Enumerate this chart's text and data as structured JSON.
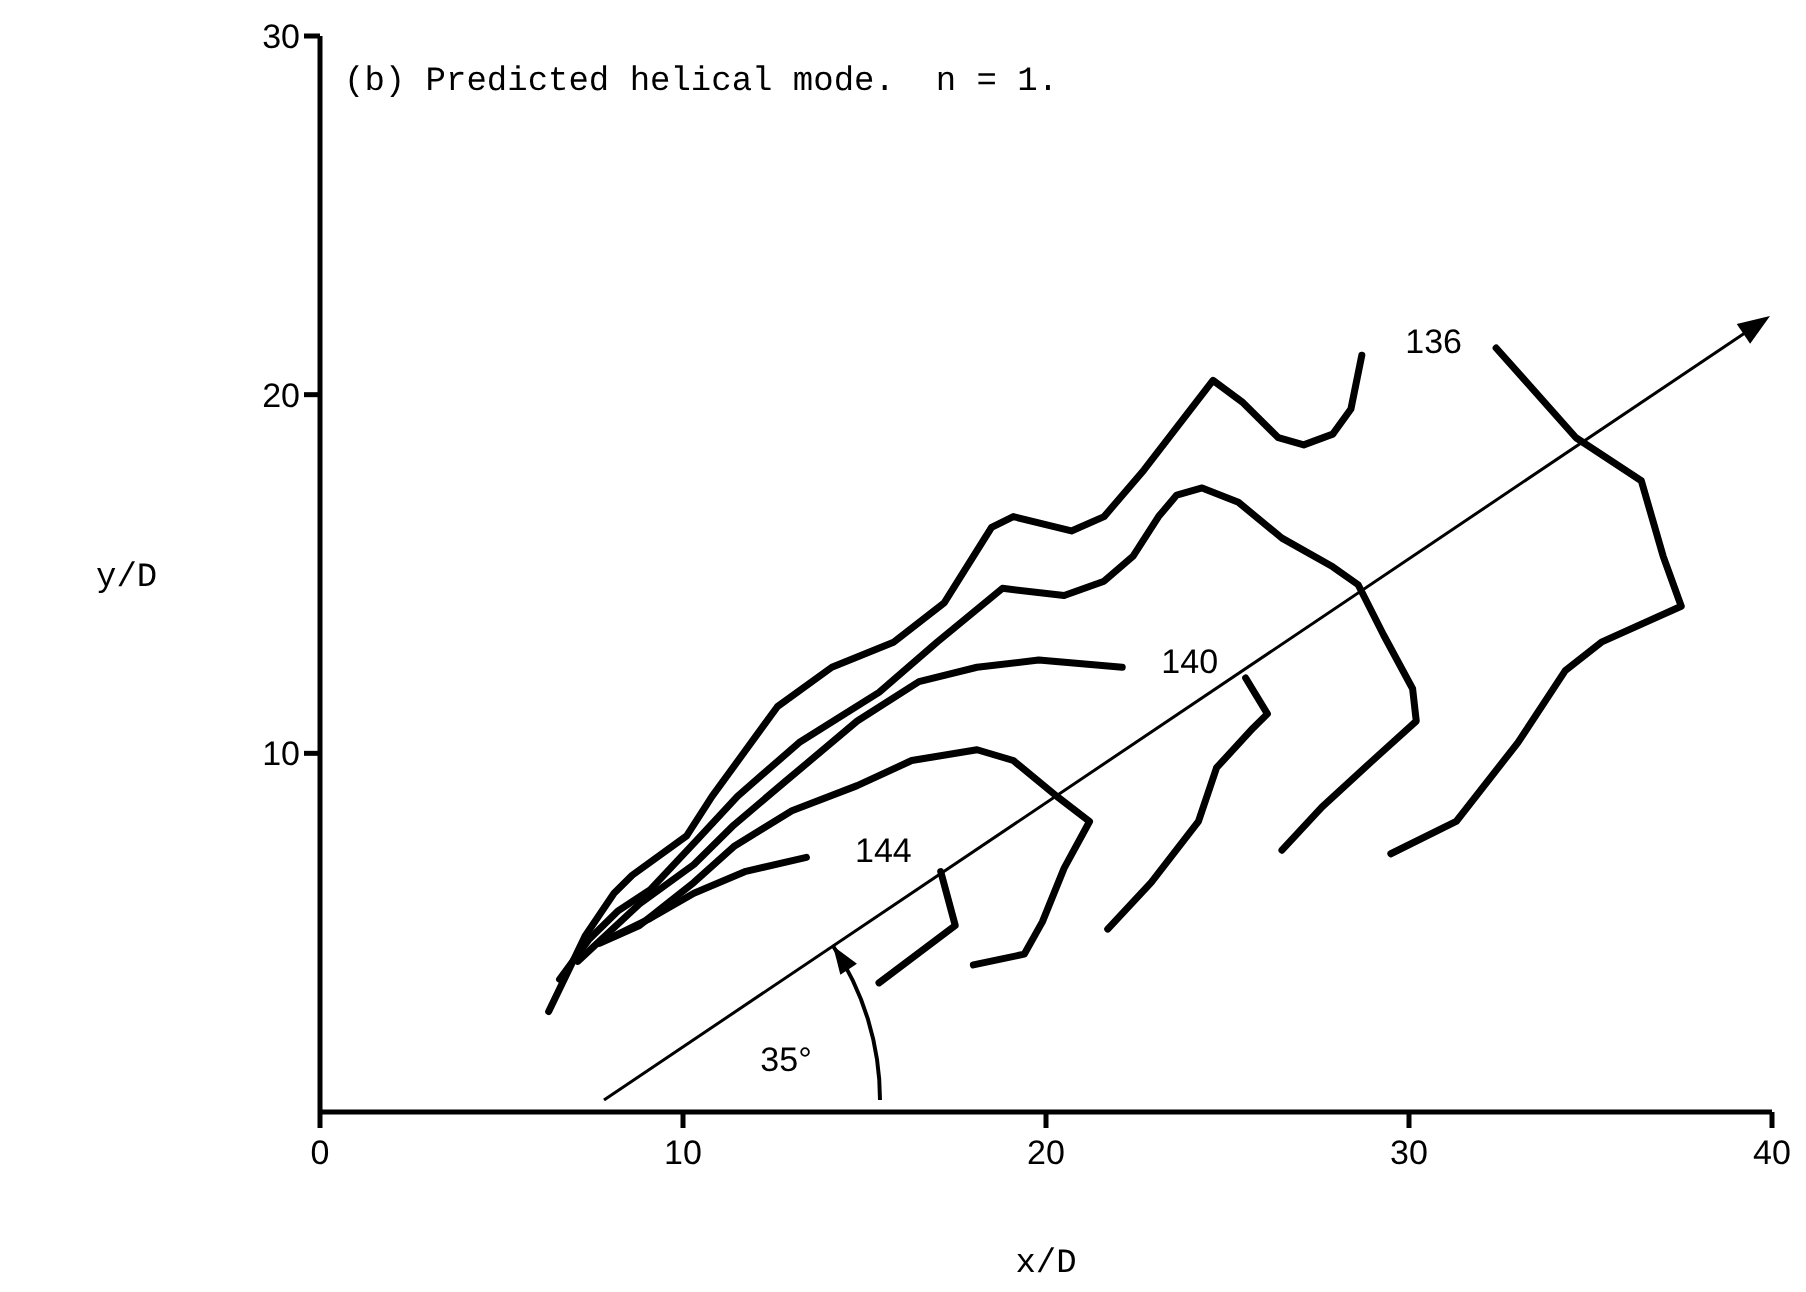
{
  "chart_data": {
    "type": "line",
    "title": "(b) Predicted helical mode.  n = 1.",
    "xlabel": "x/D",
    "ylabel": "y/D",
    "xlim": [
      0,
      40
    ],
    "ylim": [
      0,
      30
    ],
    "xticks": [
      0,
      10,
      20,
      30,
      40
    ],
    "yticks": [
      10,
      20,
      30
    ],
    "marker": "none",
    "line_style": "solid",
    "series": [
      {
        "color": "#000000",
        "x": [
          6.3,
          7.3,
          8.1,
          8.6,
          10.1,
          10.8,
          12.6,
          14.1,
          15.8,
          17.2,
          18.5,
          19.1,
          20.7,
          21.6,
          22.7,
          24.6,
          25.4,
          26.4,
          27.1,
          27.9,
          28.4,
          28.7
        ],
        "values": [
          2.8,
          4.9,
          6.1,
          6.6,
          7.7,
          8.8,
          11.3,
          12.4,
          13.1,
          14.2,
          16.3,
          16.6,
          16.2,
          16.6,
          17.9,
          20.4,
          19.8,
          18.8,
          18.6,
          18.9,
          19.6,
          21.1
        ]
      },
      {
        "color": "#000000",
        "x": [
          32.4,
          34.6,
          36.4,
          37.0,
          37.5,
          35.3,
          34.3,
          33.0,
          31.3,
          29.5
        ],
        "values": [
          21.3,
          18.8,
          17.6,
          15.5,
          14.1,
          13.1,
          12.3,
          10.3,
          8.1,
          7.2
        ]
      },
      {
        "color": "#000000",
        "x": [
          6.6,
          7.4,
          8.2,
          9.1,
          10.4,
          11.5,
          13.2,
          15.4,
          17.0,
          18.8,
          20.5,
          21.6,
          22.4,
          23.1,
          23.6,
          24.3,
          25.3,
          26.5,
          27.9,
          28.6,
          29.3,
          30.1,
          30.2,
          29.0,
          27.6,
          26.5
        ],
        "values": [
          3.7,
          4.8,
          5.6,
          6.2,
          7.6,
          8.8,
          10.3,
          11.7,
          13.1,
          14.6,
          14.4,
          14.8,
          15.5,
          16.6,
          17.2,
          17.4,
          17.0,
          16.0,
          15.2,
          14.7,
          13.3,
          11.8,
          10.9,
          9.8,
          8.5,
          7.3
        ]
      },
      {
        "color": "#000000",
        "x": [
          7.1,
          8.8,
          10.3,
          11.4,
          12.8,
          14.8,
          16.5,
          18.1,
          19.8,
          22.1
        ],
        "values": [
          4.2,
          5.8,
          6.9,
          8.0,
          9.2,
          10.9,
          12.0,
          12.4,
          12.6,
          12.4
        ]
      },
      {
        "color": "#000000",
        "x": [
          25.5,
          26.1,
          25.7,
          24.7,
          24.2,
          22.9,
          21.7
        ],
        "values": [
          12.1,
          11.1,
          10.7,
          9.6,
          8.1,
          6.4,
          5.1
        ]
      },
      {
        "color": "#000000",
        "x": [
          7.7,
          8.8,
          10.3,
          11.4,
          13.0,
          14.8,
          16.3,
          18.1,
          19.1,
          20.3,
          21.2,
          20.5,
          19.9,
          19.4,
          18.0
        ],
        "values": [
          4.7,
          5.2,
          6.4,
          7.4,
          8.4,
          9.1,
          9.8,
          10.1,
          9.8,
          8.8,
          8.1,
          6.8,
          5.3,
          4.4,
          4.1
        ]
      },
      {
        "color": "#000000",
        "x": [
          8.1,
          9.1,
          10.3,
          11.7,
          13.4
        ],
        "values": [
          4.9,
          5.4,
          6.1,
          6.7,
          7.1
        ]
      },
      {
        "color": "#000000",
        "x": [
          17.1,
          17.5,
          15.4
        ],
        "values": [
          6.7,
          5.2,
          3.6
        ]
      }
    ],
    "annotations": [
      "136",
      "140",
      "144",
      "35°"
    ]
  }
}
